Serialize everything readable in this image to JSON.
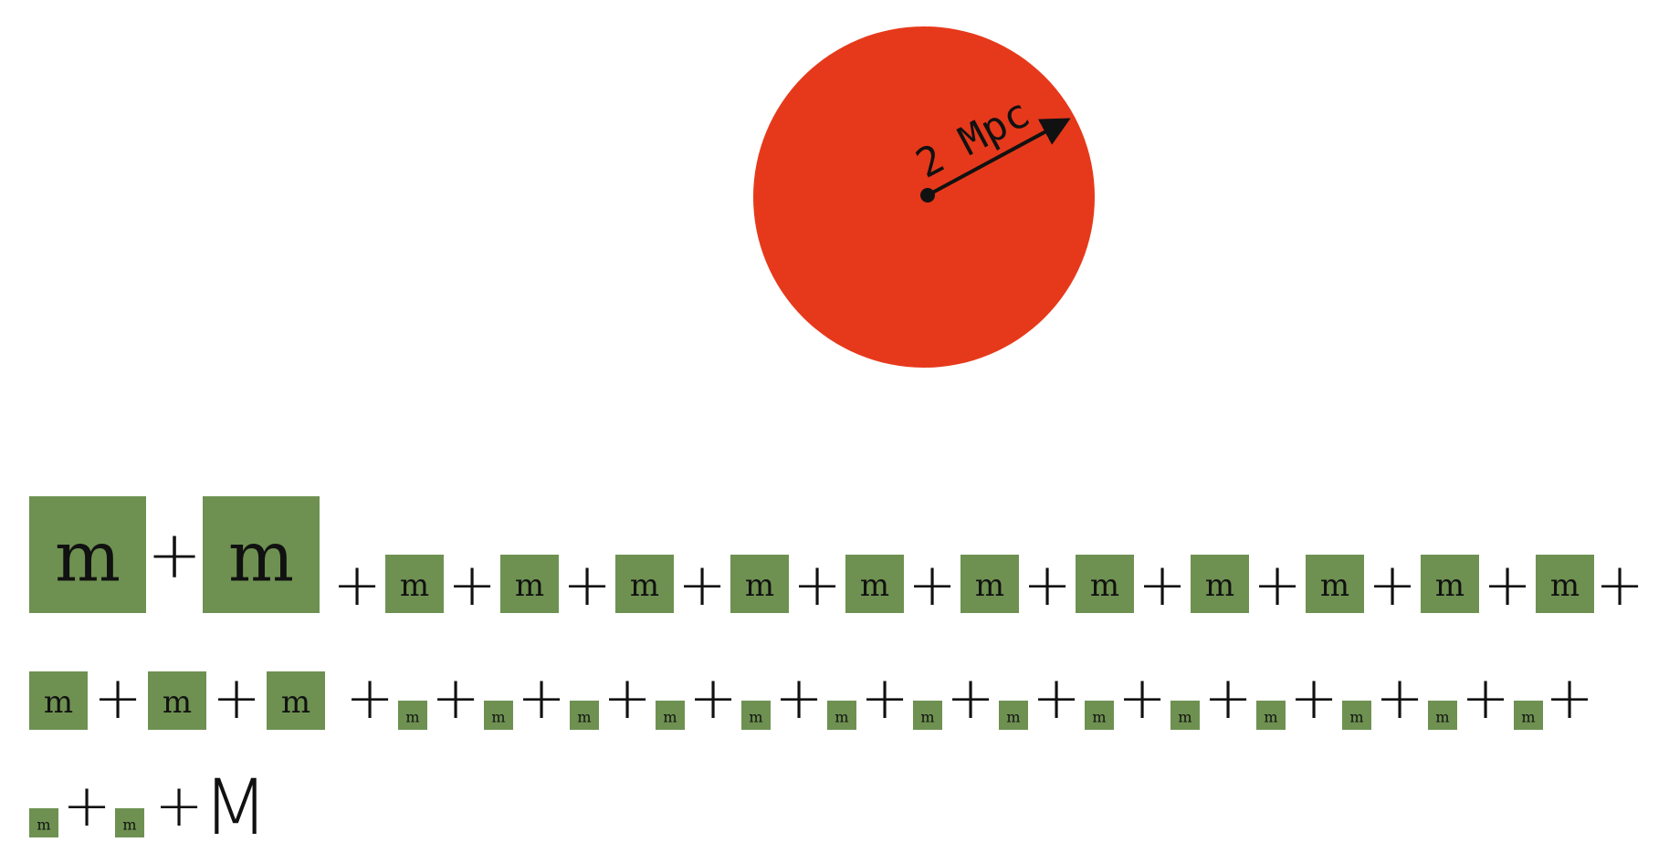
{
  "colors": {
    "circle": "#e6391b",
    "box": "#6e9151",
    "ink": "#111111"
  },
  "circle": {
    "radius_label": "2 Mpc"
  },
  "equation": {
    "unit_label": "m",
    "plus": "+",
    "equals": "=",
    "total_label": "M",
    "row1": {
      "large_terms": 2,
      "medium_terms": 11
    },
    "row2": {
      "medium_terms": 3,
      "small_terms": 14
    },
    "row3": {
      "small_terms": 2
    }
  }
}
